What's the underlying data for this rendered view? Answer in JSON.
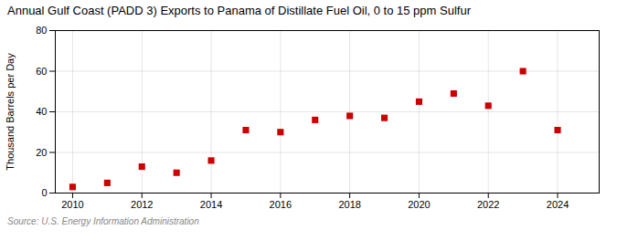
{
  "chart_data": {
    "type": "scatter",
    "title": "Annual Gulf Coast (PADD 3) Exports to Panama of Distillate Fuel Oil, 0 to 15 ppm Sulfur",
    "y_label": "Thousand Barrels per Day",
    "annotations": [
      "Source: U.S. Energy Information Administration"
    ],
    "x": [
      2010,
      2011,
      2012,
      2013,
      2014,
      2015,
      2016,
      2017,
      2018,
      2019,
      2020,
      2021,
      2022,
      2023,
      2024
    ],
    "values": [
      3,
      5,
      13,
      10,
      16,
      31,
      30,
      36,
      38,
      37,
      45,
      49,
      43,
      60,
      31
    ],
    "color": "#cc0000",
    "marker": "square",
    "xlim": [
      2009.5,
      2025.2
    ],
    "xticks": [
      2010,
      2012,
      2014,
      2016,
      2018,
      2020,
      2022,
      2024
    ],
    "ylim": [
      0,
      80
    ],
    "yticks": [
      0,
      20,
      40,
      60,
      80
    ],
    "grid": true
  }
}
